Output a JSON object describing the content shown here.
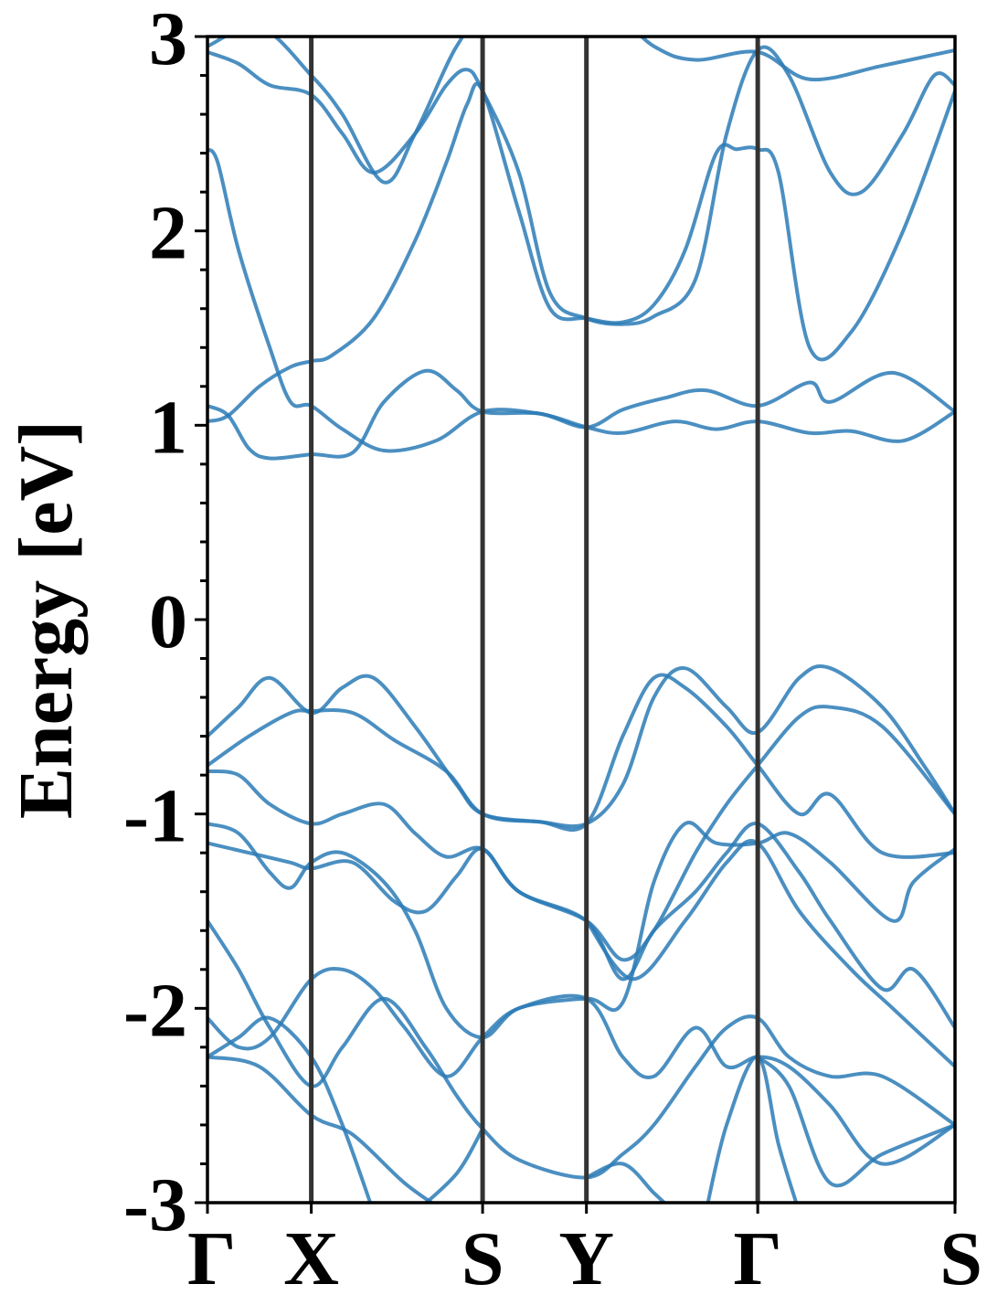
{
  "chart_data": {
    "type": "line",
    "title": "",
    "ylabel": "Energy [eV]",
    "xlabel": "",
    "ylim": [
      -3,
      3
    ],
    "yticks": [
      -3,
      -2,
      -1,
      0,
      1,
      2,
      3
    ],
    "ytick_labels": [
      "-3",
      "-2",
      "-1",
      "0",
      "1",
      "2",
      "3"
    ],
    "minor_ytick_step": 0.2,
    "grid": false,
    "band_color": "#2c7bb6",
    "kline_color": "#333333",
    "kpoints": [
      {
        "label": "Γ",
        "x": 0.0
      },
      {
        "label": "X",
        "x": 1.0
      },
      {
        "label": "S",
        "x": 2.65
      },
      {
        "label": "Y",
        "x": 3.65
      },
      {
        "label": "Γ",
        "x": 5.3
      },
      {
        "label": "S",
        "x": 7.2
      }
    ],
    "xlim": [
      0,
      7.2
    ],
    "series": [
      {
        "values": [
          [
            0,
            2.42
          ],
          [
            0.1,
            2.35
          ],
          [
            0.3,
            1.9
          ],
          [
            0.6,
            1.4
          ],
          [
            0.8,
            1.12
          ],
          [
            1.0,
            1.1
          ],
          [
            1.3,
            0.98
          ],
          [
            1.7,
            0.87
          ],
          [
            2.2,
            0.92
          ],
          [
            2.65,
            1.07
          ],
          [
            3.2,
            1.06
          ],
          [
            3.65,
            0.99
          ],
          [
            4.0,
            0.96
          ],
          [
            4.5,
            1.02
          ],
          [
            4.9,
            0.98
          ],
          [
            5.3,
            1.02
          ],
          [
            5.8,
            0.96
          ],
          [
            6.2,
            0.97
          ],
          [
            6.7,
            0.92
          ],
          [
            7.2,
            1.07
          ]
        ]
      },
      {
        "values": [
          [
            0,
            1.02
          ],
          [
            0.2,
            1.05
          ],
          [
            0.5,
            1.2
          ],
          [
            0.8,
            1.3
          ],
          [
            1.0,
            1.33
          ],
          [
            1.2,
            1.36
          ],
          [
            1.6,
            1.55
          ],
          [
            2.0,
            1.95
          ],
          [
            2.3,
            2.35
          ],
          [
            2.5,
            2.65
          ],
          [
            2.65,
            2.72
          ],
          [
            3.0,
            2.1
          ],
          [
            3.3,
            1.6
          ],
          [
            3.65,
            1.55
          ],
          [
            4.0,
            1.53
          ],
          [
            4.3,
            1.62
          ],
          [
            4.6,
            1.9
          ],
          [
            4.9,
            2.4
          ],
          [
            5.1,
            2.42
          ],
          [
            5.3,
            2.42
          ],
          [
            5.5,
            2.3
          ],
          [
            5.8,
            1.4
          ],
          [
            6.2,
            1.48
          ],
          [
            6.7,
            2.0
          ],
          [
            7.2,
            2.72
          ]
        ]
      },
      {
        "values": [
          [
            0,
            1.1
          ],
          [
            0.2,
            1.05
          ],
          [
            0.4,
            0.88
          ],
          [
            0.6,
            0.83
          ],
          [
            1.0,
            0.85
          ],
          [
            1.4,
            0.86
          ],
          [
            1.7,
            1.12
          ],
          [
            2.1,
            1.28
          ],
          [
            2.4,
            1.18
          ],
          [
            2.65,
            1.07
          ],
          [
            3.2,
            1.06
          ],
          [
            3.65,
            0.99
          ],
          [
            4.0,
            1.08
          ],
          [
            4.4,
            1.14
          ],
          [
            4.8,
            1.18
          ],
          [
            5.3,
            1.1
          ],
          [
            5.8,
            1.22
          ],
          [
            6.0,
            1.12
          ],
          [
            6.6,
            1.27
          ],
          [
            7.2,
            1.07
          ]
        ]
      },
      {
        "values": [
          [
            0,
            2.92
          ],
          [
            0.3,
            2.86
          ],
          [
            0.6,
            2.75
          ],
          [
            1.0,
            2.7
          ],
          [
            1.3,
            2.5
          ],
          [
            1.6,
            2.3
          ],
          [
            2.0,
            2.5
          ],
          [
            2.3,
            2.75
          ],
          [
            2.5,
            2.83
          ],
          [
            2.65,
            2.72
          ],
          [
            3.0,
            2.3
          ],
          [
            3.3,
            1.68
          ],
          [
            3.65,
            1.55
          ],
          [
            4.0,
            1.52
          ],
          [
            4.3,
            1.56
          ],
          [
            4.7,
            1.75
          ],
          [
            5.0,
            2.5
          ],
          [
            5.3,
            2.93
          ],
          [
            5.6,
            2.8
          ],
          [
            6.0,
            2.3
          ],
          [
            6.3,
            2.2
          ],
          [
            6.7,
            2.5
          ],
          [
            7.0,
            2.8
          ],
          [
            7.2,
            2.75
          ]
        ]
      },
      {
        "values": [
          [
            0,
            2.95
          ],
          [
            0.5,
            3.05
          ],
          [
            1.0,
            2.8
          ],
          [
            1.3,
            2.6
          ],
          [
            1.7,
            2.25
          ],
          [
            2.0,
            2.5
          ],
          [
            2.4,
            2.95
          ],
          [
            2.65,
            3.05
          ],
          [
            3.65,
            3.2
          ],
          [
            4.3,
            2.95
          ],
          [
            4.7,
            2.88
          ],
          [
            5.3,
            2.92
          ],
          [
            5.8,
            2.78
          ],
          [
            6.5,
            2.85
          ],
          [
            7.2,
            2.93
          ]
        ]
      },
      {
        "values": [
          [
            0,
            -0.6
          ],
          [
            0.3,
            -0.45
          ],
          [
            0.6,
            -0.3
          ],
          [
            1.0,
            -0.48
          ],
          [
            1.3,
            -0.35
          ],
          [
            1.6,
            -0.3
          ],
          [
            2.0,
            -0.55
          ],
          [
            2.4,
            -0.85
          ],
          [
            2.65,
            -1.0
          ],
          [
            3.2,
            -1.04
          ],
          [
            3.65,
            -1.05
          ],
          [
            4.0,
            -0.85
          ],
          [
            4.3,
            -0.4
          ],
          [
            4.6,
            -0.25
          ],
          [
            5.0,
            -0.45
          ],
          [
            5.3,
            -0.58
          ],
          [
            5.7,
            -0.3
          ],
          [
            6.0,
            -0.25
          ],
          [
            6.5,
            -0.45
          ],
          [
            6.9,
            -0.75
          ],
          [
            7.2,
            -1.0
          ]
        ]
      },
      {
        "values": [
          [
            0,
            -0.75
          ],
          [
            0.4,
            -0.6
          ],
          [
            0.8,
            -0.48
          ],
          [
            1.0,
            -0.47
          ],
          [
            1.4,
            -0.48
          ],
          [
            1.8,
            -0.62
          ],
          [
            2.3,
            -0.78
          ],
          [
            2.65,
            -1.0
          ],
          [
            3.2,
            -1.04
          ],
          [
            3.65,
            -1.05
          ],
          [
            4.0,
            -0.6
          ],
          [
            4.3,
            -0.3
          ],
          [
            4.6,
            -0.35
          ],
          [
            5.0,
            -0.55
          ],
          [
            5.3,
            -0.75
          ],
          [
            5.7,
            -1.0
          ],
          [
            6.0,
            -0.9
          ],
          [
            6.5,
            -1.2
          ],
          [
            7.2,
            -1.2
          ]
        ]
      },
      {
        "values": [
          [
            0,
            -0.78
          ],
          [
            0.3,
            -0.8
          ],
          [
            0.6,
            -0.95
          ],
          [
            1.0,
            -1.05
          ],
          [
            1.3,
            -1.0
          ],
          [
            1.7,
            -0.95
          ],
          [
            2.0,
            -1.1
          ],
          [
            2.3,
            -1.22
          ],
          [
            2.65,
            -1.18
          ],
          [
            3.0,
            -1.4
          ],
          [
            3.65,
            -1.55
          ],
          [
            4.0,
            -1.75
          ],
          [
            4.3,
            -1.6
          ],
          [
            4.7,
            -1.2
          ],
          [
            5.0,
            -0.95
          ],
          [
            5.3,
            -0.75
          ],
          [
            5.7,
            -0.5
          ],
          [
            6.0,
            -0.45
          ],
          [
            6.5,
            -0.55
          ],
          [
            7.2,
            -1.0
          ]
        ]
      },
      {
        "values": [
          [
            0,
            -1.05
          ],
          [
            0.3,
            -1.1
          ],
          [
            0.6,
            -1.3
          ],
          [
            0.8,
            -1.38
          ],
          [
            1.0,
            -1.25
          ],
          [
            1.3,
            -1.2
          ],
          [
            1.7,
            -1.35
          ],
          [
            2.0,
            -1.6
          ],
          [
            2.3,
            -2.0
          ],
          [
            2.65,
            -2.15
          ],
          [
            3.0,
            -2.0
          ],
          [
            3.65,
            -1.95
          ],
          [
            4.0,
            -1.97
          ],
          [
            4.3,
            -1.35
          ],
          [
            4.6,
            -1.05
          ],
          [
            4.9,
            -1.15
          ],
          [
            5.3,
            -1.15
          ],
          [
            5.6,
            -1.1
          ],
          [
            6.0,
            -1.25
          ],
          [
            6.6,
            -1.55
          ],
          [
            6.8,
            -1.35
          ],
          [
            7.2,
            -1.18
          ]
        ]
      },
      {
        "values": [
          [
            0,
            -1.15
          ],
          [
            0.4,
            -1.2
          ],
          [
            0.8,
            -1.25
          ],
          [
            1.0,
            -1.28
          ],
          [
            1.4,
            -1.25
          ],
          [
            1.8,
            -1.45
          ],
          [
            2.1,
            -1.5
          ],
          [
            2.4,
            -1.32
          ],
          [
            2.65,
            -1.18
          ],
          [
            3.0,
            -1.4
          ],
          [
            3.65,
            -1.55
          ],
          [
            4.0,
            -1.85
          ],
          [
            4.3,
            -1.6
          ],
          [
            4.7,
            -1.4
          ],
          [
            5.0,
            -1.2
          ],
          [
            5.3,
            -1.05
          ],
          [
            5.7,
            -1.3
          ],
          [
            6.0,
            -1.55
          ],
          [
            6.5,
            -1.9
          ],
          [
            6.8,
            -1.8
          ],
          [
            7.2,
            -2.1
          ]
        ]
      },
      {
        "values": [
          [
            0,
            -1.55
          ],
          [
            0.3,
            -1.8
          ],
          [
            0.6,
            -2.1
          ],
          [
            1.0,
            -2.4
          ],
          [
            1.3,
            -2.2
          ],
          [
            1.7,
            -1.95
          ],
          [
            2.1,
            -2.2
          ],
          [
            2.4,
            -2.45
          ],
          [
            2.65,
            -2.62
          ],
          [
            3.0,
            -2.78
          ],
          [
            3.65,
            -2.87
          ],
          [
            4.0,
            -2.75
          ],
          [
            4.3,
            -2.6
          ],
          [
            4.7,
            -2.3
          ],
          [
            5.0,
            -2.1
          ],
          [
            5.3,
            -2.05
          ],
          [
            5.6,
            -2.25
          ],
          [
            6.0,
            -2.35
          ],
          [
            6.5,
            -2.35
          ],
          [
            7.2,
            -2.6
          ]
        ]
      },
      {
        "values": [
          [
            0,
            -2.05
          ],
          [
            0.3,
            -2.2
          ],
          [
            0.6,
            -2.15
          ],
          [
            1.0,
            -1.85
          ],
          [
            1.3,
            -1.8
          ],
          [
            1.6,
            -1.9
          ],
          [
            1.9,
            -2.1
          ],
          [
            2.3,
            -2.35
          ],
          [
            2.65,
            -2.15
          ],
          [
            3.0,
            -2.0
          ],
          [
            3.65,
            -1.95
          ],
          [
            4.0,
            -2.25
          ],
          [
            4.3,
            -2.35
          ],
          [
            4.7,
            -2.1
          ],
          [
            5.0,
            -2.3
          ],
          [
            5.3,
            -2.25
          ],
          [
            5.6,
            -2.3
          ],
          [
            6.0,
            -2.5
          ],
          [
            6.5,
            -2.8
          ],
          [
            7.2,
            -2.6
          ]
        ]
      },
      {
        "values": [
          [
            0,
            -2.25
          ],
          [
            0.3,
            -2.15
          ],
          [
            0.6,
            -2.05
          ],
          [
            1.0,
            -2.25
          ],
          [
            1.3,
            -2.6
          ],
          [
            1.6,
            -3.05
          ]
        ]
      },
      {
        "values": [
          [
            0,
            -2.25
          ],
          [
            0.5,
            -2.3
          ],
          [
            1.0,
            -2.55
          ],
          [
            1.4,
            -2.65
          ],
          [
            1.9,
            -2.9
          ],
          [
            2.3,
            -3.05
          ]
        ]
      },
      {
        "values": [
          [
            2.0,
            -3.05
          ],
          [
            2.4,
            -2.85
          ],
          [
            2.65,
            -2.62
          ]
        ]
      },
      {
        "values": [
          [
            3.65,
            -2.87
          ],
          [
            4.0,
            -2.8
          ],
          [
            4.3,
            -2.95
          ],
          [
            4.5,
            -3.05
          ]
        ]
      },
      {
        "values": [
          [
            4.8,
            -3.05
          ],
          [
            5.0,
            -2.6
          ],
          [
            5.3,
            -2.25
          ],
          [
            5.5,
            -2.7
          ],
          [
            5.7,
            -3.05
          ]
        ]
      },
      {
        "values": [
          [
            5.3,
            -2.25
          ],
          [
            5.6,
            -2.4
          ],
          [
            6.0,
            -2.9
          ],
          [
            6.5,
            -2.75
          ],
          [
            7.2,
            -2.6
          ]
        ]
      },
      {
        "values": [
          [
            3.65,
            -1.55
          ],
          [
            4.1,
            -1.85
          ],
          [
            4.6,
            -1.55
          ],
          [
            5.0,
            -1.25
          ],
          [
            5.3,
            -1.15
          ],
          [
            5.7,
            -1.5
          ],
          [
            6.2,
            -1.8
          ],
          [
            6.6,
            -2.0
          ],
          [
            7.2,
            -2.3
          ]
        ]
      }
    ]
  }
}
